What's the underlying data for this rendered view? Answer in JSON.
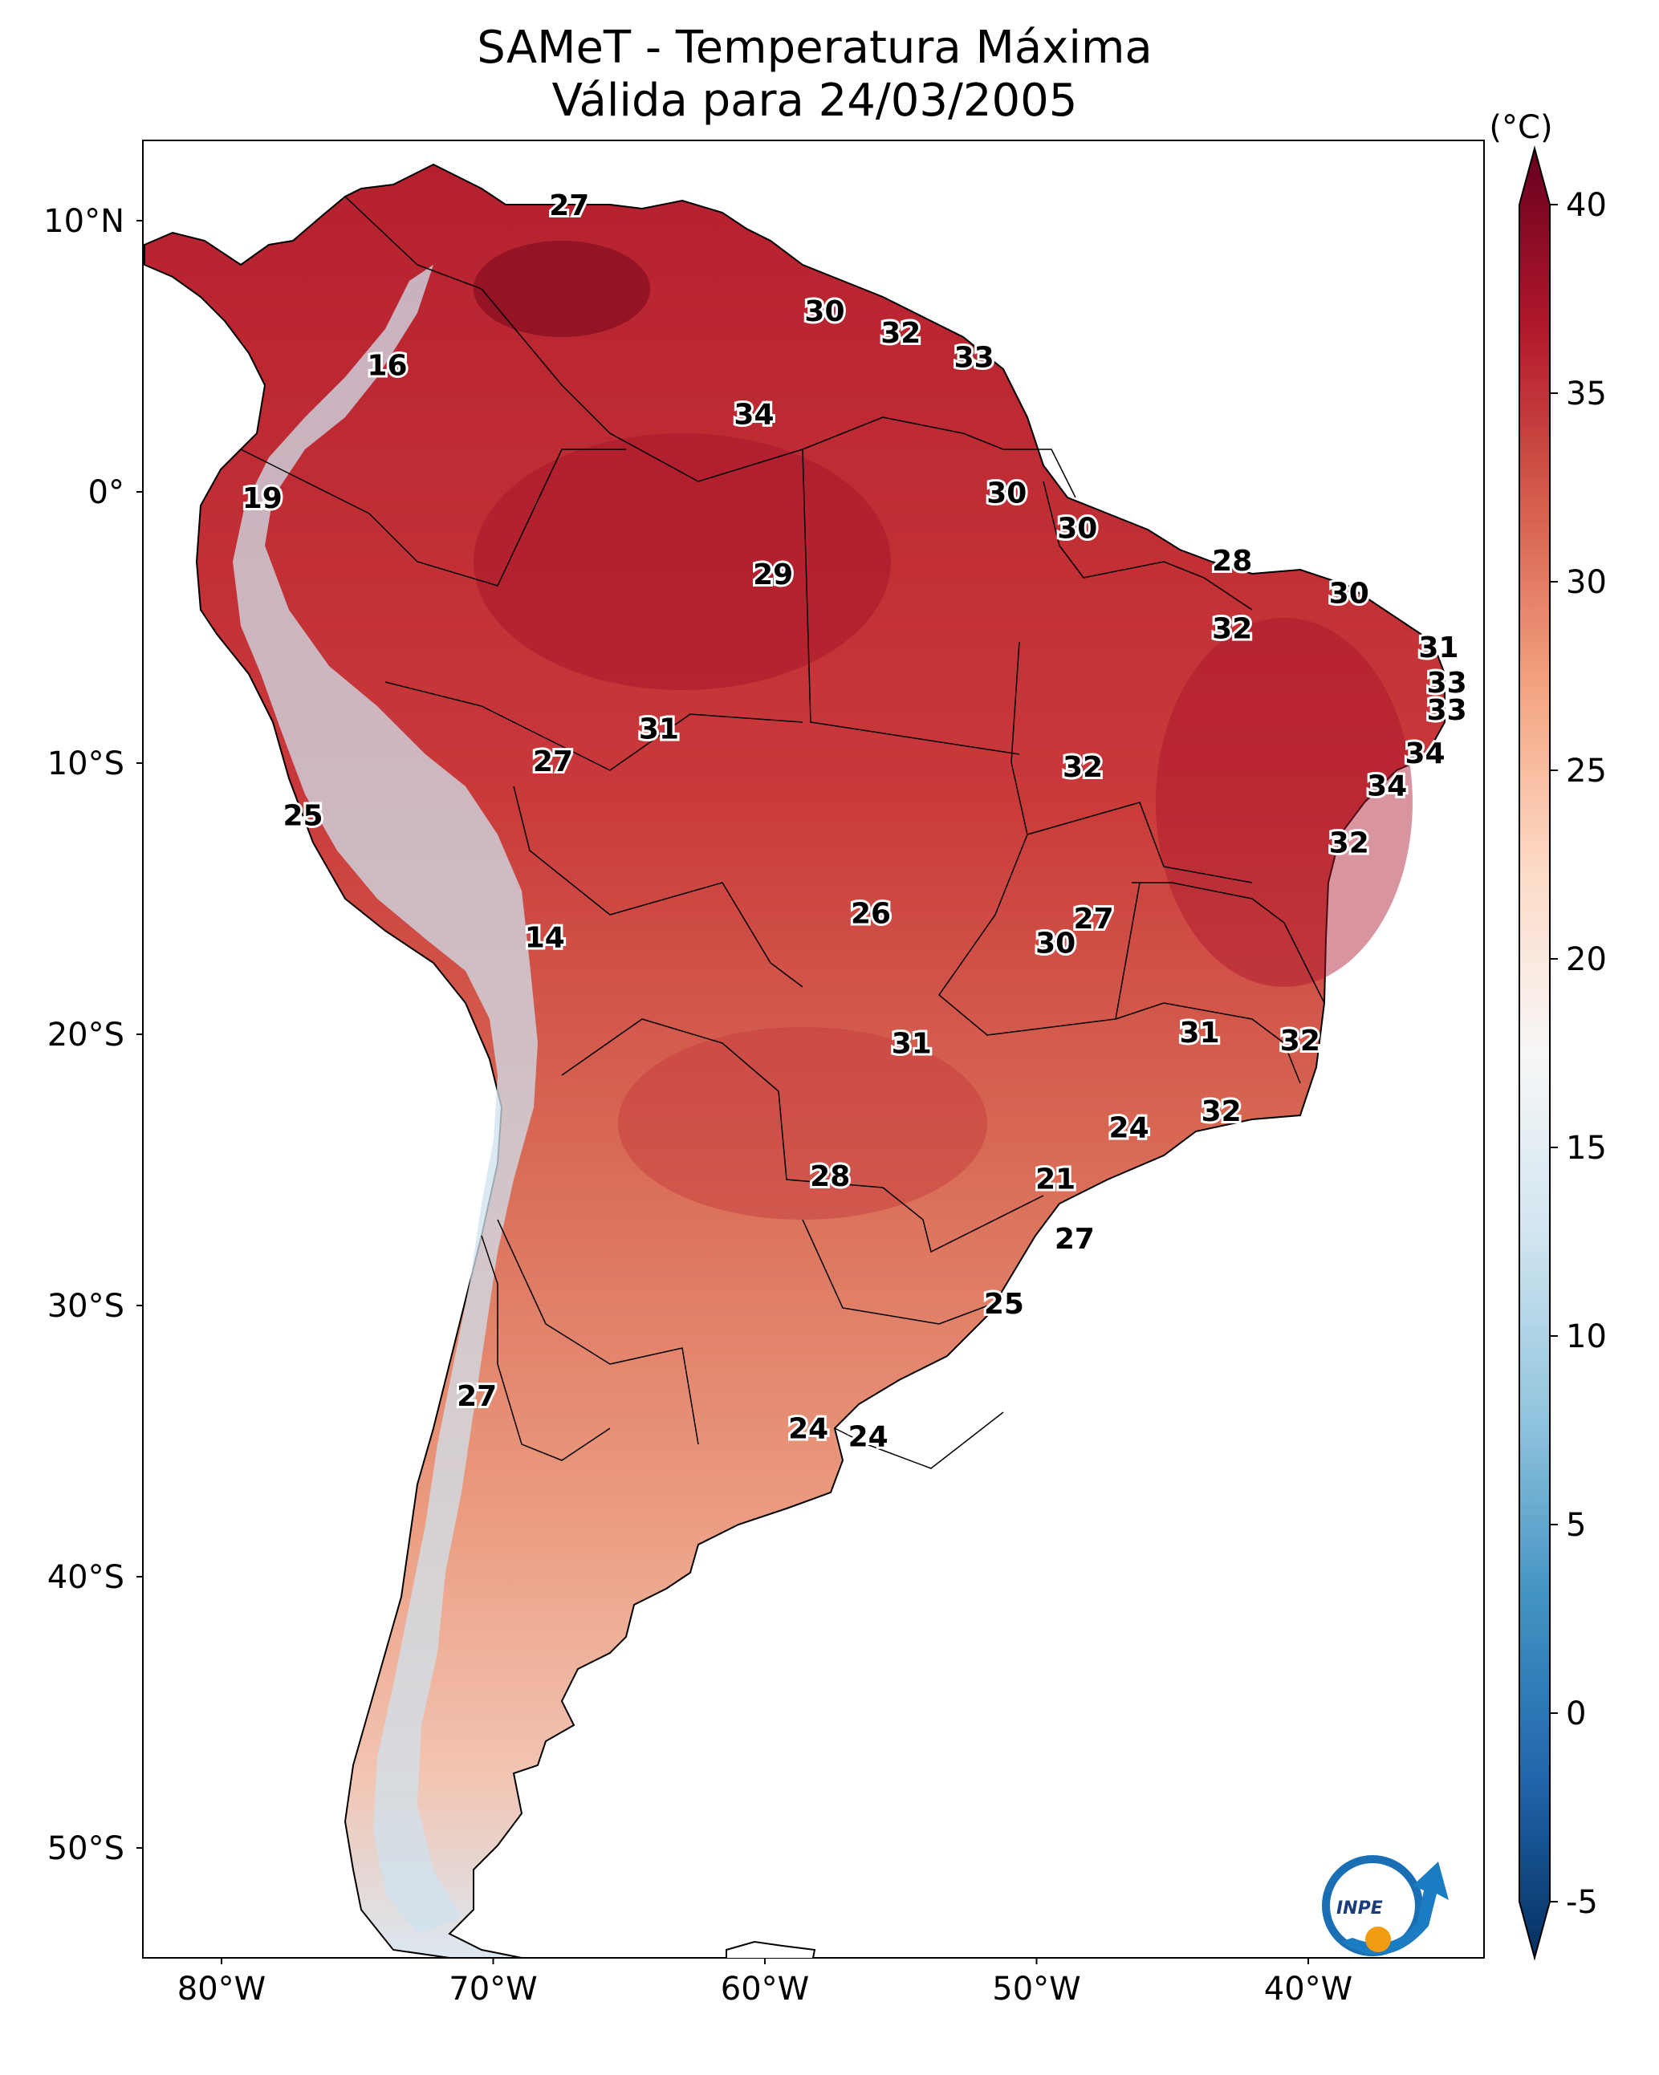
{
  "title": {
    "line1": "SAMeT - Temperatura Máxima",
    "line2": "Válida para 24/03/2005"
  },
  "axes": {
    "lat_ticks": [
      {
        "lat": 10,
        "label": "10°N"
      },
      {
        "lat": 0,
        "label": "0°"
      },
      {
        "lat": -10,
        "label": "10°S"
      },
      {
        "lat": -20,
        "label": "20°S"
      },
      {
        "lat": -30,
        "label": "30°S"
      },
      {
        "lat": -40,
        "label": "40°S"
      },
      {
        "lat": -50,
        "label": "50°S"
      }
    ],
    "lon_ticks": [
      {
        "lon": -80,
        "label": "80°W"
      },
      {
        "lon": -70,
        "label": "70°W"
      },
      {
        "lon": -60,
        "label": "60°W"
      },
      {
        "lon": -50,
        "label": "50°W"
      },
      {
        "lon": -40,
        "label": "40°W"
      }
    ]
  },
  "colorbar": {
    "unit_label": "(°C)",
    "min": -5,
    "max": 40,
    "ticks": [
      -5,
      0,
      5,
      10,
      15,
      20,
      25,
      30,
      35,
      40
    ],
    "colors": [
      "#053061",
      "#2166ac",
      "#4393c3",
      "#92c5de",
      "#d1e5f0",
      "#f7f7f7",
      "#fddbc7",
      "#f4a582",
      "#d6604d",
      "#b2182b",
      "#67001f"
    ]
  },
  "station_labels": [
    {
      "lon": -67.2,
      "lat": 10.5,
      "value": "27"
    },
    {
      "lon": -57.8,
      "lat": 6.6,
      "value": "30"
    },
    {
      "lon": -55.0,
      "lat": 5.8,
      "value": "32"
    },
    {
      "lon": -52.3,
      "lat": 4.9,
      "value": "33"
    },
    {
      "lon": -73.9,
      "lat": 4.6,
      "value": "16"
    },
    {
      "lon": -60.4,
      "lat": 2.8,
      "value": "34"
    },
    {
      "lon": -78.5,
      "lat": -0.3,
      "value": "19"
    },
    {
      "lon": -51.1,
      "lat": -0.1,
      "value": "30"
    },
    {
      "lon": -48.5,
      "lat": -1.4,
      "value": "30"
    },
    {
      "lon": -59.7,
      "lat": -3.1,
      "value": "29"
    },
    {
      "lon": -42.8,
      "lat": -2.6,
      "value": "28"
    },
    {
      "lon": -38.5,
      "lat": -3.8,
      "value": "30"
    },
    {
      "lon": -42.8,
      "lat": -5.1,
      "value": "32"
    },
    {
      "lon": -35.2,
      "lat": -5.8,
      "value": "31"
    },
    {
      "lon": -34.9,
      "lat": -7.1,
      "value": "33"
    },
    {
      "lon": -34.9,
      "lat": -8.1,
      "value": "33"
    },
    {
      "lon": -63.9,
      "lat": -8.8,
      "value": "31"
    },
    {
      "lon": -67.8,
      "lat": -10.0,
      "value": "27"
    },
    {
      "lon": -48.3,
      "lat": -10.2,
      "value": "32"
    },
    {
      "lon": -35.7,
      "lat": -9.7,
      "value": "34"
    },
    {
      "lon": -37.1,
      "lat": -10.9,
      "value": "34"
    },
    {
      "lon": -77.0,
      "lat": -12.0,
      "value": "25"
    },
    {
      "lon": -38.5,
      "lat": -13.0,
      "value": "32"
    },
    {
      "lon": -56.1,
      "lat": -15.6,
      "value": "26"
    },
    {
      "lon": -47.9,
      "lat": -15.8,
      "value": "27"
    },
    {
      "lon": -49.3,
      "lat": -16.7,
      "value": "30"
    },
    {
      "lon": -68.1,
      "lat": -16.5,
      "value": "14"
    },
    {
      "lon": -44.0,
      "lat": -20.0,
      "value": "31"
    },
    {
      "lon": -54.6,
      "lat": -20.4,
      "value": "31"
    },
    {
      "lon": -40.3,
      "lat": -20.3,
      "value": "32"
    },
    {
      "lon": -43.2,
      "lat": -22.9,
      "value": "32"
    },
    {
      "lon": -46.6,
      "lat": -23.5,
      "value": "24"
    },
    {
      "lon": -49.3,
      "lat": -25.4,
      "value": "21"
    },
    {
      "lon": -57.6,
      "lat": -25.3,
      "value": "28"
    },
    {
      "lon": -48.6,
      "lat": -27.6,
      "value": "27"
    },
    {
      "lon": -51.2,
      "lat": -30.0,
      "value": "25"
    },
    {
      "lon": -70.6,
      "lat": -33.4,
      "value": "27"
    },
    {
      "lon": -58.4,
      "lat": -34.6,
      "value": "24"
    },
    {
      "lon": -56.2,
      "lat": -34.9,
      "value": "24"
    }
  ],
  "logo": {
    "text": "INPE"
  }
}
